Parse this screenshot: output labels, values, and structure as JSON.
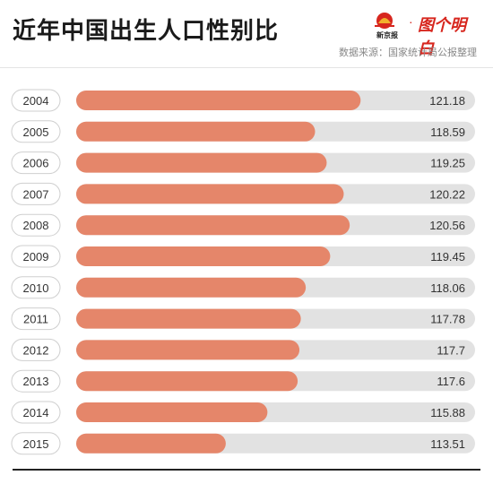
{
  "title": "近年中国出生人口性别比",
  "source": "数据来源：国家统计局公报整理",
  "logo": {
    "name": "新京报",
    "text": "图个明白"
  },
  "colors": {
    "bar": "#e5866a",
    "track": "#e2e2e2",
    "accent": "#d7261e"
  },
  "chart_data": {
    "type": "bar",
    "orientation": "horizontal",
    "categories": [
      "2004",
      "2005",
      "2006",
      "2007",
      "2008",
      "2009",
      "2010",
      "2011",
      "2012",
      "2013",
      "2014",
      "2015"
    ],
    "values": [
      121.18,
      118.59,
      119.25,
      120.22,
      120.56,
      119.45,
      118.06,
      117.78,
      117.7,
      117.6,
      115.88,
      113.51
    ],
    "value_labels": [
      "121.18",
      "118.59",
      "119.25",
      "120.22",
      "120.56",
      "119.45",
      "118.06",
      "117.78",
      "117.7",
      "117.6",
      "115.88",
      "113.51"
    ],
    "title": "近年中国出生人口性别比",
    "xlabel": "",
    "ylabel": "",
    "xlim": [
      105,
      123
    ],
    "grid": false,
    "legend": "none"
  }
}
